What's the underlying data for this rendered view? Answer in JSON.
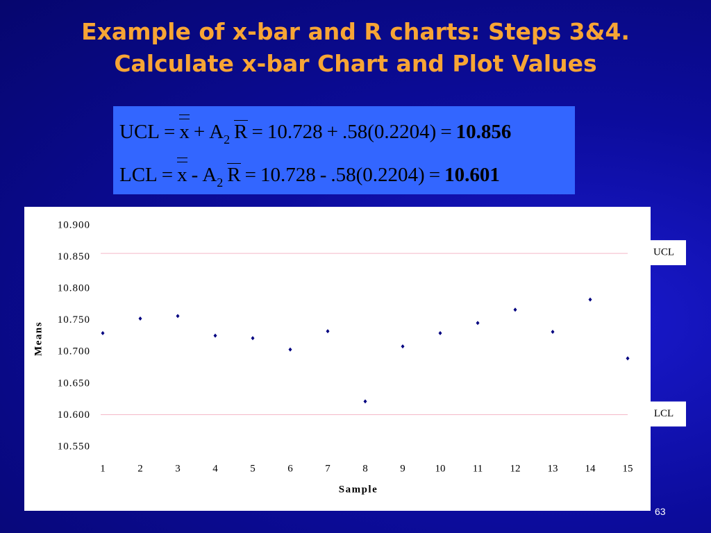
{
  "title_lines": [
    "Example of x-bar and R charts: Steps 3&4.",
    "Calculate x-bar Chart and Plot Values"
  ],
  "formula": {
    "lines": [
      [
        "UCL",
        "=",
        "x",
        "+",
        "A",
        "2",
        "R",
        "=",
        "10.728",
        "+",
        ".58(0.2204)",
        "=",
        "10.856"
      ],
      [
        "LCL",
        "=",
        "x",
        "-",
        "A",
        "2",
        "R",
        "=",
        "10.728",
        "-",
        ".58(0.2204)",
        "=",
        "10.601"
      ]
    ]
  },
  "chart_data": {
    "type": "scatter",
    "x": [
      1,
      2,
      3,
      4,
      5,
      6,
      7,
      8,
      9,
      10,
      11,
      12,
      13,
      14,
      15
    ],
    "series": [
      {
        "color": "#000080",
        "values": [
          10.73,
          10.753,
          10.757,
          10.726,
          10.722,
          10.704,
          10.733,
          10.622,
          10.709,
          10.73,
          10.746,
          10.767,
          10.732,
          10.783,
          10.69
        ]
      }
    ],
    "control_lines": [
      {
        "name": "UCL",
        "value": 10.856,
        "color": "#f4b8c8"
      },
      {
        "name": "LCL",
        "value": 10.601,
        "color": "#f4b8c8"
      }
    ],
    "x_label": "Sample",
    "y_label": "Means",
    "xlim": [
      1,
      15
    ],
    "xticks": [
      1,
      2,
      3,
      4,
      5,
      6,
      7,
      8,
      9,
      10,
      11,
      12,
      13,
      14,
      15
    ],
    "ylim": [
      10.55,
      10.9
    ],
    "yticks": [
      {
        "value": 10.55,
        "label": "10.550"
      },
      {
        "value": 10.6,
        "label": "10.600"
      },
      {
        "value": 10.65,
        "label": "10.650"
      },
      {
        "value": 10.7,
        "label": "10.700"
      },
      {
        "value": 10.75,
        "label": "10.750"
      },
      {
        "value": 10.8,
        "label": "10.800"
      },
      {
        "value": 10.85,
        "label": "10.850"
      },
      {
        "value": 10.9,
        "label": "10.900"
      }
    ],
    "grid": false
  },
  "page_number": "63"
}
